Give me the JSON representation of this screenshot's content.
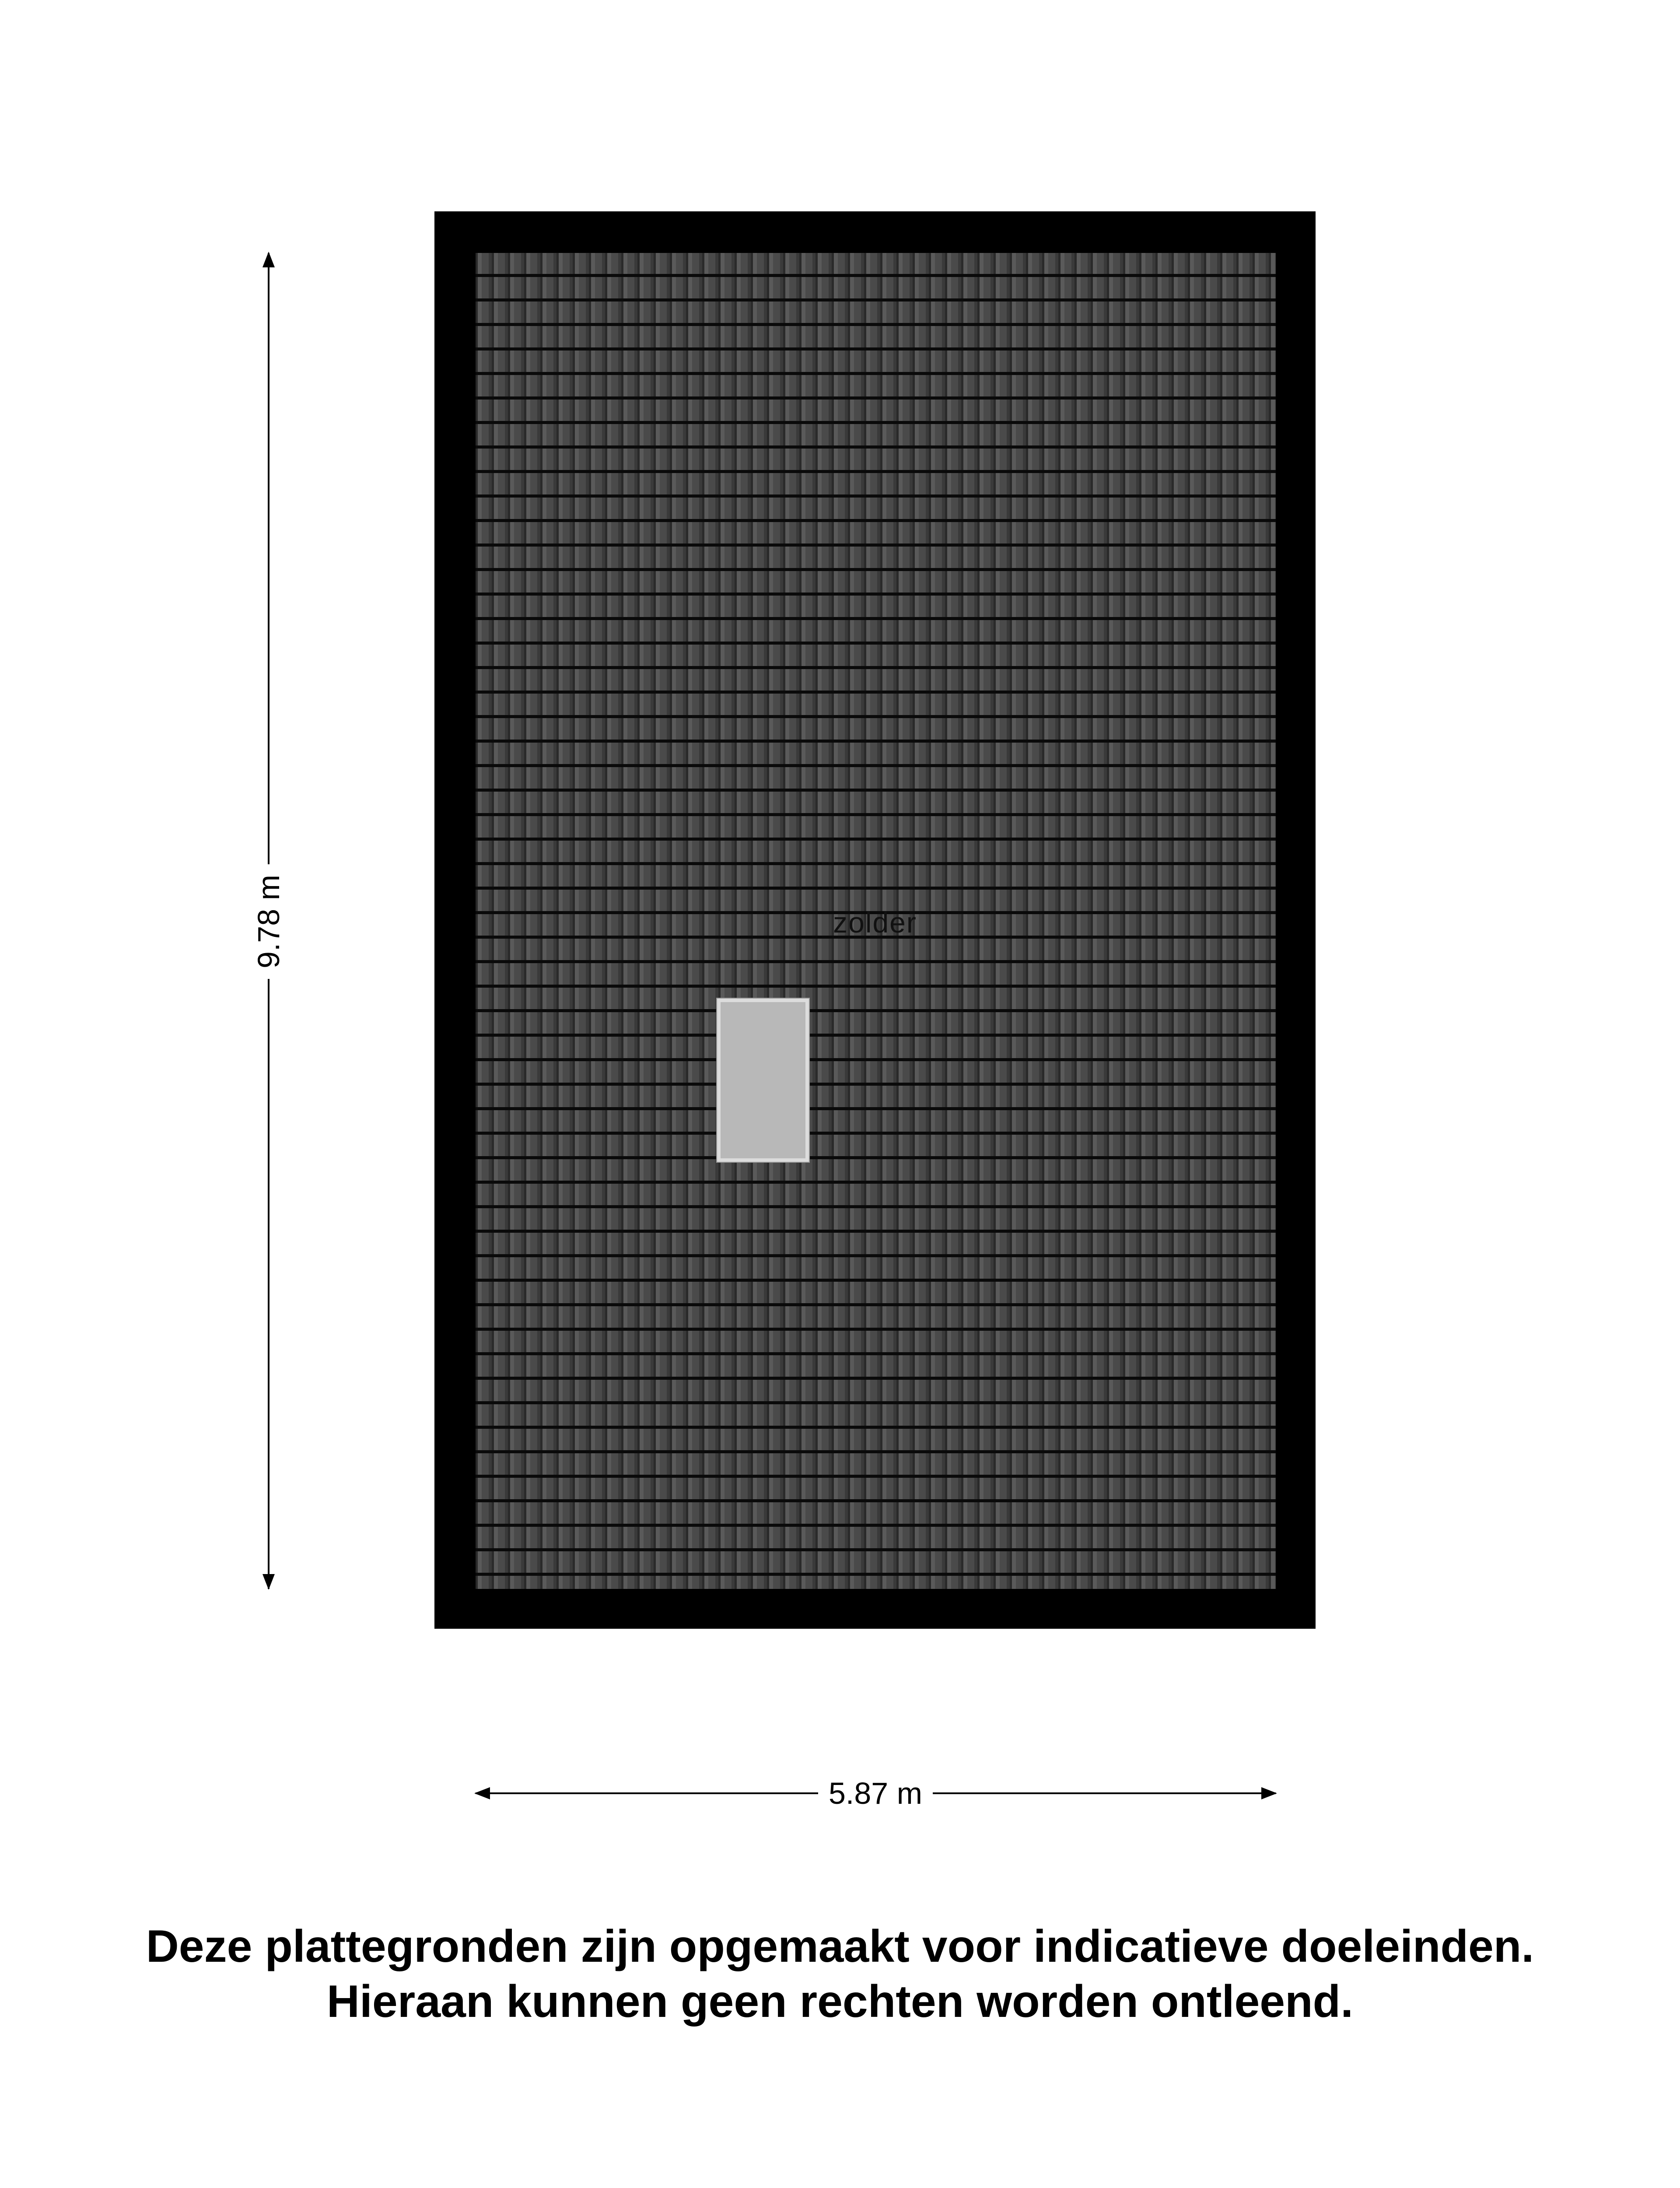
{
  "floorplan": {
    "room_label": "zolder",
    "height_dimension": "9.78 m",
    "width_dimension": "5.87 m",
    "colors": {
      "wall": "#000000",
      "roof_tiles": "#4b4b4b",
      "hatch": "#b8b8b8"
    }
  },
  "disclaimer": {
    "line1": "Deze plattegronden zijn opgemaakt voor indicatieve doeleinden.",
    "line2": "Hieraan kunnen geen rechten worden ontleend."
  }
}
